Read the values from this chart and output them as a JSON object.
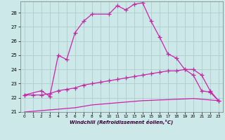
{
  "xlabel": "Windchill (Refroidissement éolien,°C)",
  "background_color": "#cde8e8",
  "grid_color": "#aac8c8",
  "line_color": "#cc22aa",
  "xlim": [
    -0.5,
    23.5
  ],
  "ylim": [
    21,
    28.8
  ],
  "yticks": [
    21,
    22,
    23,
    24,
    25,
    26,
    27,
    28
  ],
  "xticks": [
    0,
    1,
    2,
    3,
    4,
    5,
    6,
    7,
    8,
    9,
    10,
    11,
    12,
    13,
    14,
    15,
    16,
    17,
    18,
    19,
    20,
    21,
    22,
    23
  ],
  "line1_x": [
    0,
    2,
    3,
    4,
    5,
    6,
    7,
    8,
    10,
    11,
    12,
    13,
    14,
    15,
    16,
    17,
    18,
    19,
    20,
    21,
    22,
    23
  ],
  "line1_y": [
    22.2,
    22.5,
    22.1,
    25.0,
    24.7,
    26.6,
    27.4,
    27.9,
    27.9,
    28.5,
    28.2,
    28.6,
    28.7,
    27.4,
    26.3,
    25.1,
    24.8,
    24.0,
    23.6,
    22.5,
    22.4,
    21.8
  ],
  "line2_x": [
    0,
    1,
    2,
    3,
    4,
    5,
    6,
    7,
    8,
    9,
    10,
    11,
    12,
    13,
    14,
    15,
    16,
    17,
    18,
    19,
    20,
    21,
    22,
    23
  ],
  "line2_y": [
    22.2,
    22.2,
    22.2,
    22.3,
    22.5,
    22.6,
    22.7,
    22.9,
    23.0,
    23.1,
    23.2,
    23.3,
    23.4,
    23.5,
    23.6,
    23.7,
    23.8,
    23.9,
    23.9,
    24.0,
    24.0,
    23.6,
    22.5,
    21.8
  ],
  "line3_x": [
    0,
    1,
    2,
    3,
    4,
    5,
    6,
    7,
    8,
    9,
    10,
    11,
    12,
    13,
    14,
    15,
    16,
    17,
    18,
    19,
    20,
    21,
    22,
    23
  ],
  "line3_y": [
    21.0,
    21.05,
    21.1,
    21.15,
    21.2,
    21.25,
    21.3,
    21.4,
    21.5,
    21.55,
    21.6,
    21.65,
    21.7,
    21.75,
    21.8,
    21.82,
    21.85,
    21.87,
    21.9,
    21.92,
    21.95,
    21.9,
    21.85,
    21.8
  ]
}
